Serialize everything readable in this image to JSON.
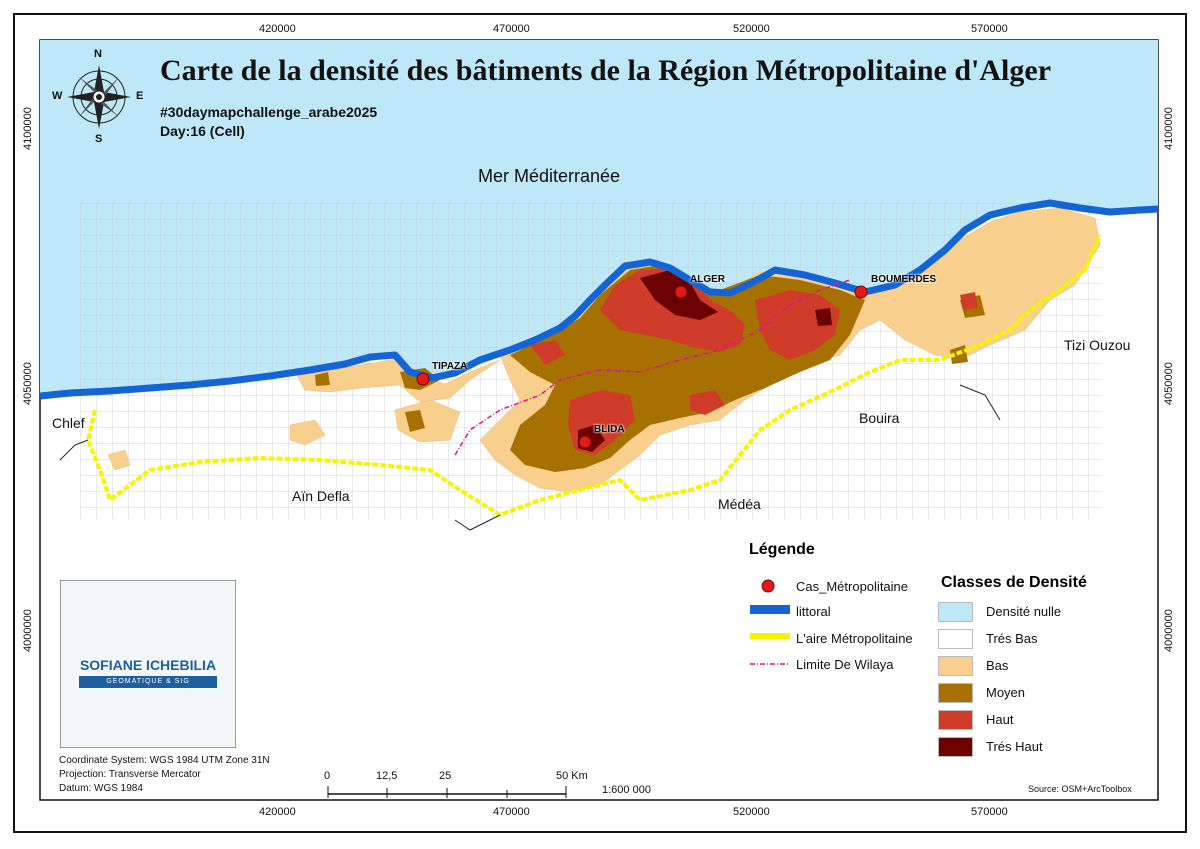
{
  "title": "Carte de la densité des bâtiments de la Région Métropolitaine d'Alger",
  "hashtag": "#30daymapchallenge_arabe2025",
  "day": "Day:16 (Cell)",
  "sea_label": "Mer Méditerranée",
  "regions": [
    "Chlef",
    "Aïn Defla",
    "Médéa",
    "Bouira",
    "Tizi Ouzou"
  ],
  "cities": [
    "TIPAZA",
    "ALGER",
    "BOUMERDES",
    "BLIDA"
  ],
  "x_ticks": [
    "420000",
    "470000",
    "520000",
    "570000"
  ],
  "y_ticks": [
    "4100000",
    "4050000",
    "4000000"
  ],
  "compass": {
    "n": "N",
    "s": "S",
    "e": "E",
    "w": "W"
  },
  "legend": {
    "title": "Légende",
    "items": [
      "Cas_Métropolitaine",
      "littoral",
      "L'aire Métropolitaine",
      "Limite De Wilaya"
    ]
  },
  "density": {
    "title": "Classes de Densité",
    "classes": [
      {
        "label": "Densité nulle",
        "color": "#bee8f8"
      },
      {
        "label": "Trés Bas",
        "color": "#ffffff"
      },
      {
        "label": "Bas",
        "color": "#f9cf8e"
      },
      {
        "label": "Moyen",
        "color": "#a67100"
      },
      {
        "label": "Haut",
        "color": "#cf3d2a"
      },
      {
        "label": "Trés Haut",
        "color": "#6d0000"
      }
    ]
  },
  "colors": {
    "sea": "#bee8f8",
    "littoral": "#1564d6",
    "metro_boundary": "#f5f500",
    "wilaya_limit": "#e0148a",
    "city_marker": "#e31a1c"
  },
  "metadata": {
    "coord_system": "Coordinate System: WGS 1984 UTM Zone 31N",
    "projection": "Projection: Transverse Mercator",
    "datum": "Datum: WGS 1984"
  },
  "scale": {
    "labels": [
      "0",
      "12,5",
      "25",
      "50 Km"
    ],
    "ratio": "1:600 000"
  },
  "source": "Source: OSM+ArcToolbox",
  "logo": {
    "name": "SOFIANE ICHEBILIA",
    "subtitle": "GEOMATIQUE & SIG"
  }
}
